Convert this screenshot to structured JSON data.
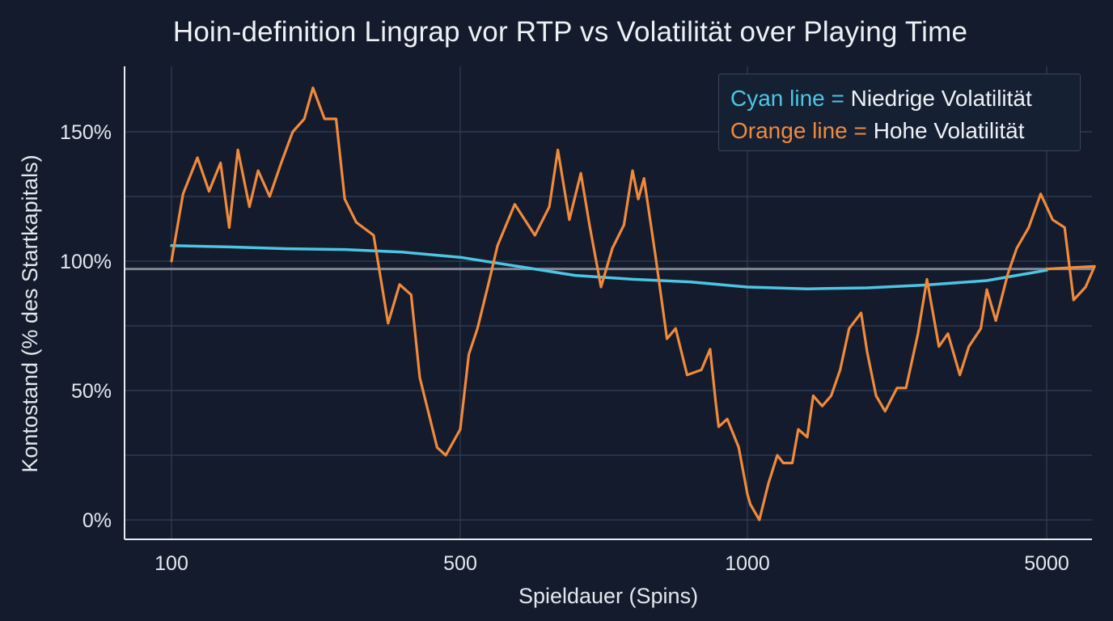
{
  "chart_data": {
    "type": "line",
    "title": "Hoin-definition Lingrap vor RTP vs Volatilität over Playing Time",
    "xlabel": "Spieldauer (Spins)",
    "ylabel": "Kontostand (% des Startkapitals)",
    "x_tick_labels": [
      "100",
      "500",
      "1000",
      "5000"
    ],
    "y_tick_labels": [
      "0%",
      "50%",
      "100%",
      "150%"
    ],
    "y_ticks": [
      0,
      50,
      100,
      150
    ],
    "ylim": [
      -8,
      175
    ],
    "reference_line": 97,
    "grid": true,
    "legend_placement": "top-right",
    "legend": [
      {
        "key": "Cyan line",
        "eq": "=",
        "desc": "Niedrige Volatilität"
      },
      {
        "key": "Orange line",
        "eq": "=",
        "desc": "Hohe Volatilität"
      }
    ],
    "colors": {
      "background": "#141b2c",
      "grid": "#2e3a4f",
      "axis": "#e8edf4",
      "reference": "#7f8794",
      "cyan": "#4cc6e4",
      "orange": "#f08a3c"
    },
    "series": [
      {
        "color": "cyan",
        "x": [
          0,
          0.2,
          0.4,
          0.6,
          0.8,
          1.0,
          1.2,
          1.4,
          1.6,
          1.8,
          2.0,
          2.2,
          2.4,
          2.6,
          2.8,
          3.0
        ],
        "values": [
          106,
          105.5,
          104.8,
          104.5,
          103.5,
          101.5,
          98,
          94.5,
          93,
          92,
          90,
          89.3,
          89.7,
          90.8,
          92.5,
          96.5
        ]
      },
      {
        "color": "orange",
        "x": [
          0,
          0.04,
          0.09,
          0.13,
          0.17,
          0.2,
          0.23,
          0.27,
          0.3,
          0.34,
          0.38,
          0.42,
          0.46,
          0.49,
          0.53,
          0.57,
          0.6,
          0.64,
          0.7,
          0.75,
          0.79,
          0.83,
          0.86,
          0.9,
          0.92,
          0.95,
          1.0,
          1.03,
          1.06,
          1.1,
          1.13,
          1.19,
          1.26,
          1.31,
          1.34,
          1.38,
          1.42,
          1.45,
          1.49,
          1.53,
          1.57,
          1.6,
          1.62,
          1.64,
          1.68,
          1.72,
          1.75,
          1.79,
          1.84,
          1.87,
          1.89,
          1.9,
          1.93,
          1.97,
          2.0,
          2.01,
          2.04,
          2.07,
          2.1,
          2.12,
          2.15,
          2.17,
          2.2,
          2.22,
          2.25,
          2.28,
          2.31,
          2.34,
          2.38,
          2.4,
          2.43,
          2.46,
          2.5,
          2.53,
          2.57,
          2.6,
          2.64,
          2.67,
          2.71,
          2.74,
          2.78,
          2.8,
          2.83,
          2.85,
          2.87,
          2.9,
          2.94,
          2.98,
          3.02,
          3.06,
          3.09,
          3.13,
          3.16,
          3.2,
          3.23,
          3.26,
          3.29,
          3.32,
          3.36,
          3.39,
          3.43,
          3.46,
          3.5,
          3.53,
          3.56,
          3.59,
          3.62,
          3.65,
          3.68,
          3.71,
          3.74,
          3.77,
          3.8,
          3.84,
          3.87,
          3.9,
          3.93,
          3.96,
          4.0
        ],
        "values": [
          100,
          126,
          140,
          127,
          138,
          113,
          143,
          121,
          135,
          125,
          138,
          150,
          155,
          167,
          155,
          155,
          124,
          115,
          110,
          76,
          91,
          87,
          55,
          37,
          28,
          25,
          35,
          64,
          74,
          92,
          106,
          122,
          110,
          121,
          143,
          116,
          134,
          114,
          90,
          105,
          114,
          135,
          124,
          132,
          102,
          70,
          74,
          56,
          58,
          66,
          45,
          36,
          39,
          28,
          10,
          6,
          0,
          14,
          25,
          22,
          22,
          35,
          32,
          48,
          44,
          48,
          58,
          74,
          80,
          65,
          48,
          42,
          51,
          51,
          72,
          93,
          67,
          72,
          56,
          67,
          74,
          89,
          77,
          86,
          95,
          105,
          113,
          126,
          116,
          113,
          85,
          90,
          98,
          97,
          97,
          97,
          97,
          97,
          97,
          97,
          97,
          97,
          97,
          97,
          97,
          97,
          97,
          97,
          97,
          97,
          97,
          97,
          97,
          97,
          97,
          97,
          97,
          97,
          97
        ]
      }
    ]
  }
}
